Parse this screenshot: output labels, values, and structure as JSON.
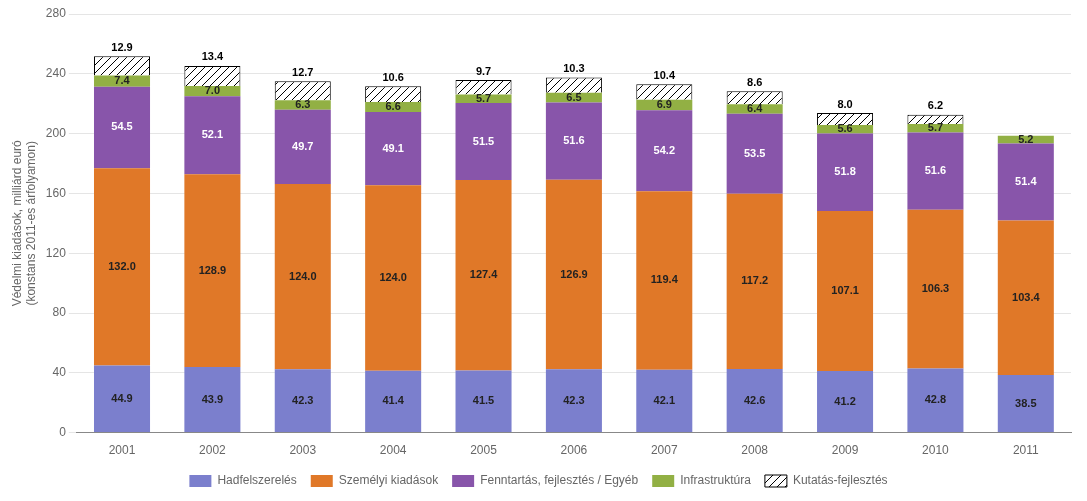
{
  "chart_data": {
    "type": "bar",
    "stacked": true,
    "categories": [
      "2001",
      "2002",
      "2003",
      "2004",
      "2005",
      "2006",
      "2007",
      "2008",
      "2009",
      "2010",
      "2011"
    ],
    "series": [
      {
        "name": "Hadfelszerelés",
        "color": "#7b7fcd",
        "values": [
          44.9,
          43.9,
          42.3,
          41.4,
          41.5,
          42.3,
          42.1,
          42.6,
          41.2,
          42.8,
          38.5
        ]
      },
      {
        "name": "Személyi kiadások",
        "color": "#e07828",
        "values": [
          132.0,
          128.9,
          124.0,
          124.0,
          127.4,
          126.9,
          119.4,
          117.2,
          107.1,
          106.3,
          103.4
        ],
        "value_labels": [
          "132.0",
          "128.9",
          "124.0",
          "124.0",
          "127.4",
          "126.9",
          "119.4",
          "117.2",
          "107.1",
          "106.3",
          "103.4"
        ]
      },
      {
        "name": "Fenntartás, fejlesztés / Egyéb",
        "color": "#8855aa",
        "values": [
          54.5,
          52.1,
          49.7,
          49.1,
          51.5,
          51.6,
          54.2,
          53.5,
          51.8,
          51.6,
          51.4
        ]
      },
      {
        "name": "Infrastruktúra",
        "color": "#92b044",
        "values": [
          7.4,
          7.0,
          6.3,
          6.6,
          5.7,
          6.5,
          6.9,
          6.4,
          5.6,
          5.7,
          5.2
        ],
        "value_labels": [
          "7.4",
          "7.0",
          "6.3",
          "6.6",
          "5.7",
          "6.5",
          "6.9",
          "6.4",
          "5.6",
          "5.7",
          "5.2"
        ]
      },
      {
        "name": "Kutatás-fejlesztés",
        "color": "#ffffff",
        "values": [
          12.9,
          13.4,
          12.7,
          10.6,
          9.7,
          10.3,
          10.4,
          8.6,
          8.0,
          6.2,
          0.0
        ],
        "value_labels": [
          "12.9",
          "13.4",
          "12.7",
          "10.6",
          "9.7",
          "10.3",
          "10.4",
          "8.6",
          "8.0",
          "6.2",
          null
        ]
      }
    ],
    "ylabel": "Védelmi kiadások, milliárd euró\n(konstans 2011-es árfolyamon)",
    "ylim": [
      0,
      280
    ],
    "yticks": [
      0,
      40,
      80,
      120,
      160,
      200,
      240,
      280
    ],
    "grid": true,
    "legend": "bottom",
    "data_labels": true
  }
}
